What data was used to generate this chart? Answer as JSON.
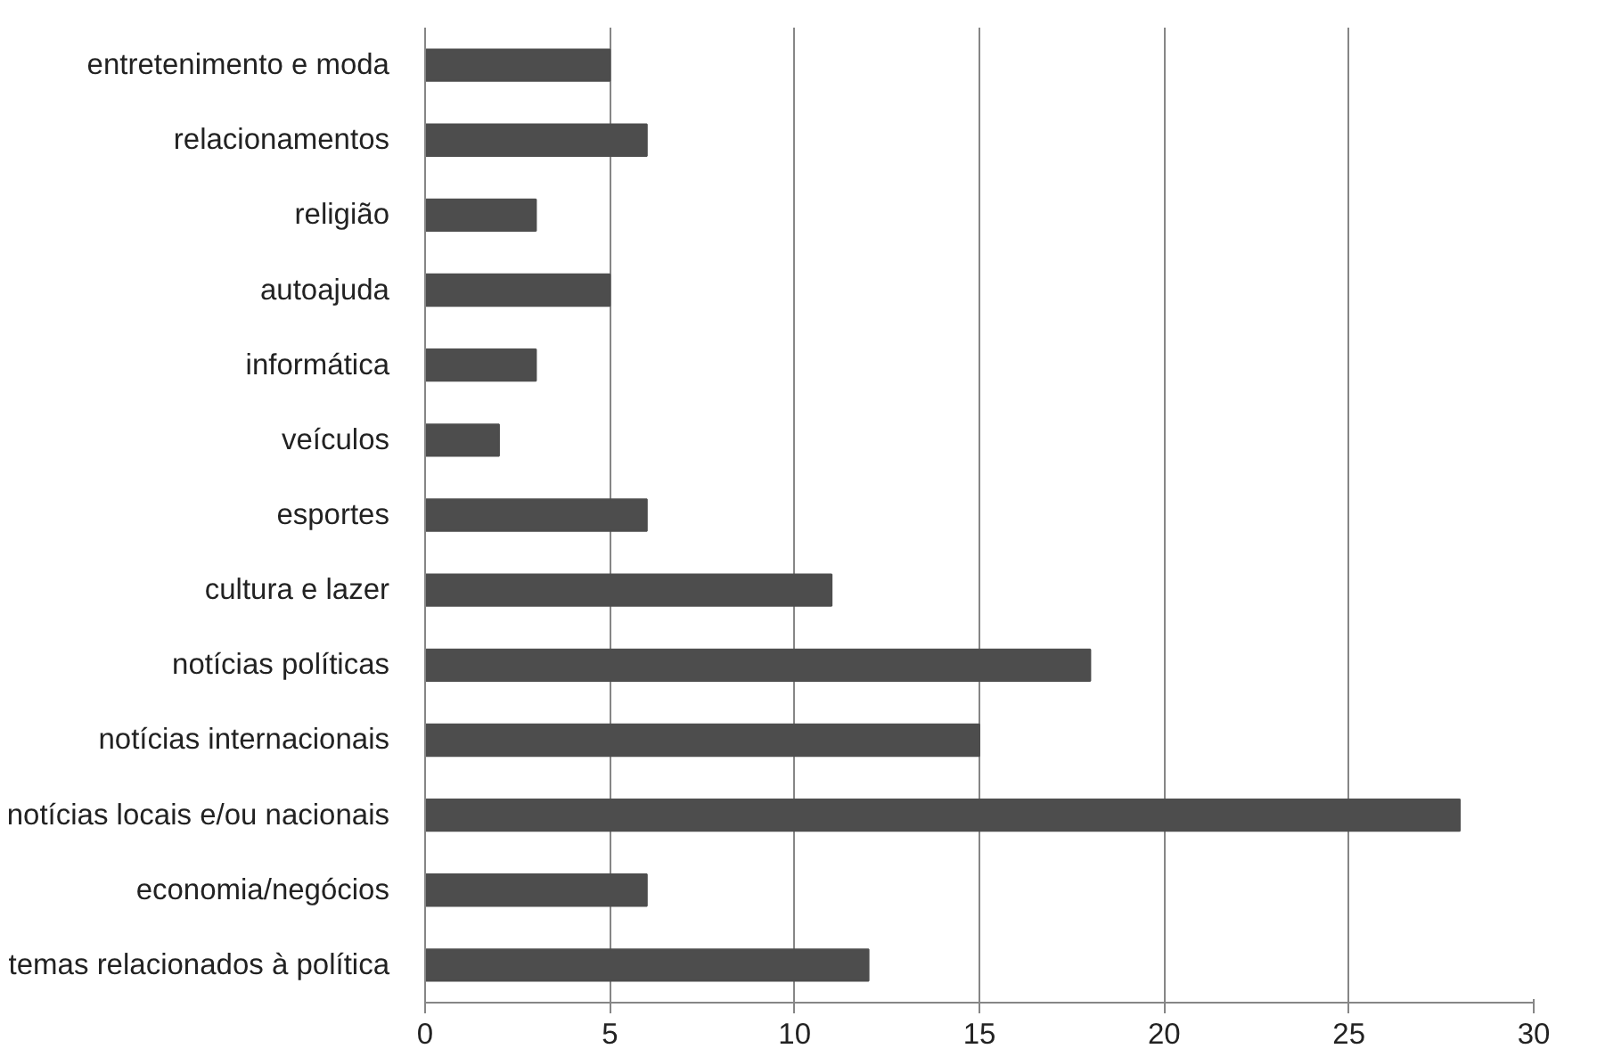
{
  "chart_data": {
    "type": "bar",
    "orientation": "horizontal",
    "categories": [
      "entretenimento e moda",
      "relacionamentos",
      "religião",
      "autoajuda",
      "informática",
      "veículos",
      "esportes",
      "cultura e lazer",
      "notícias políticas",
      "notícias internacionais",
      "notícias locais e/ou nacionais",
      "economia/negócios",
      "temas relacionados à política"
    ],
    "values": [
      5,
      6,
      3,
      5,
      3,
      2,
      6,
      11,
      18,
      15,
      28,
      6,
      12
    ],
    "color": "#4d4d4d",
    "xlim": [
      0,
      30
    ],
    "xticks": [
      0,
      5,
      10,
      15,
      20,
      25,
      30
    ],
    "grid": "x"
  }
}
